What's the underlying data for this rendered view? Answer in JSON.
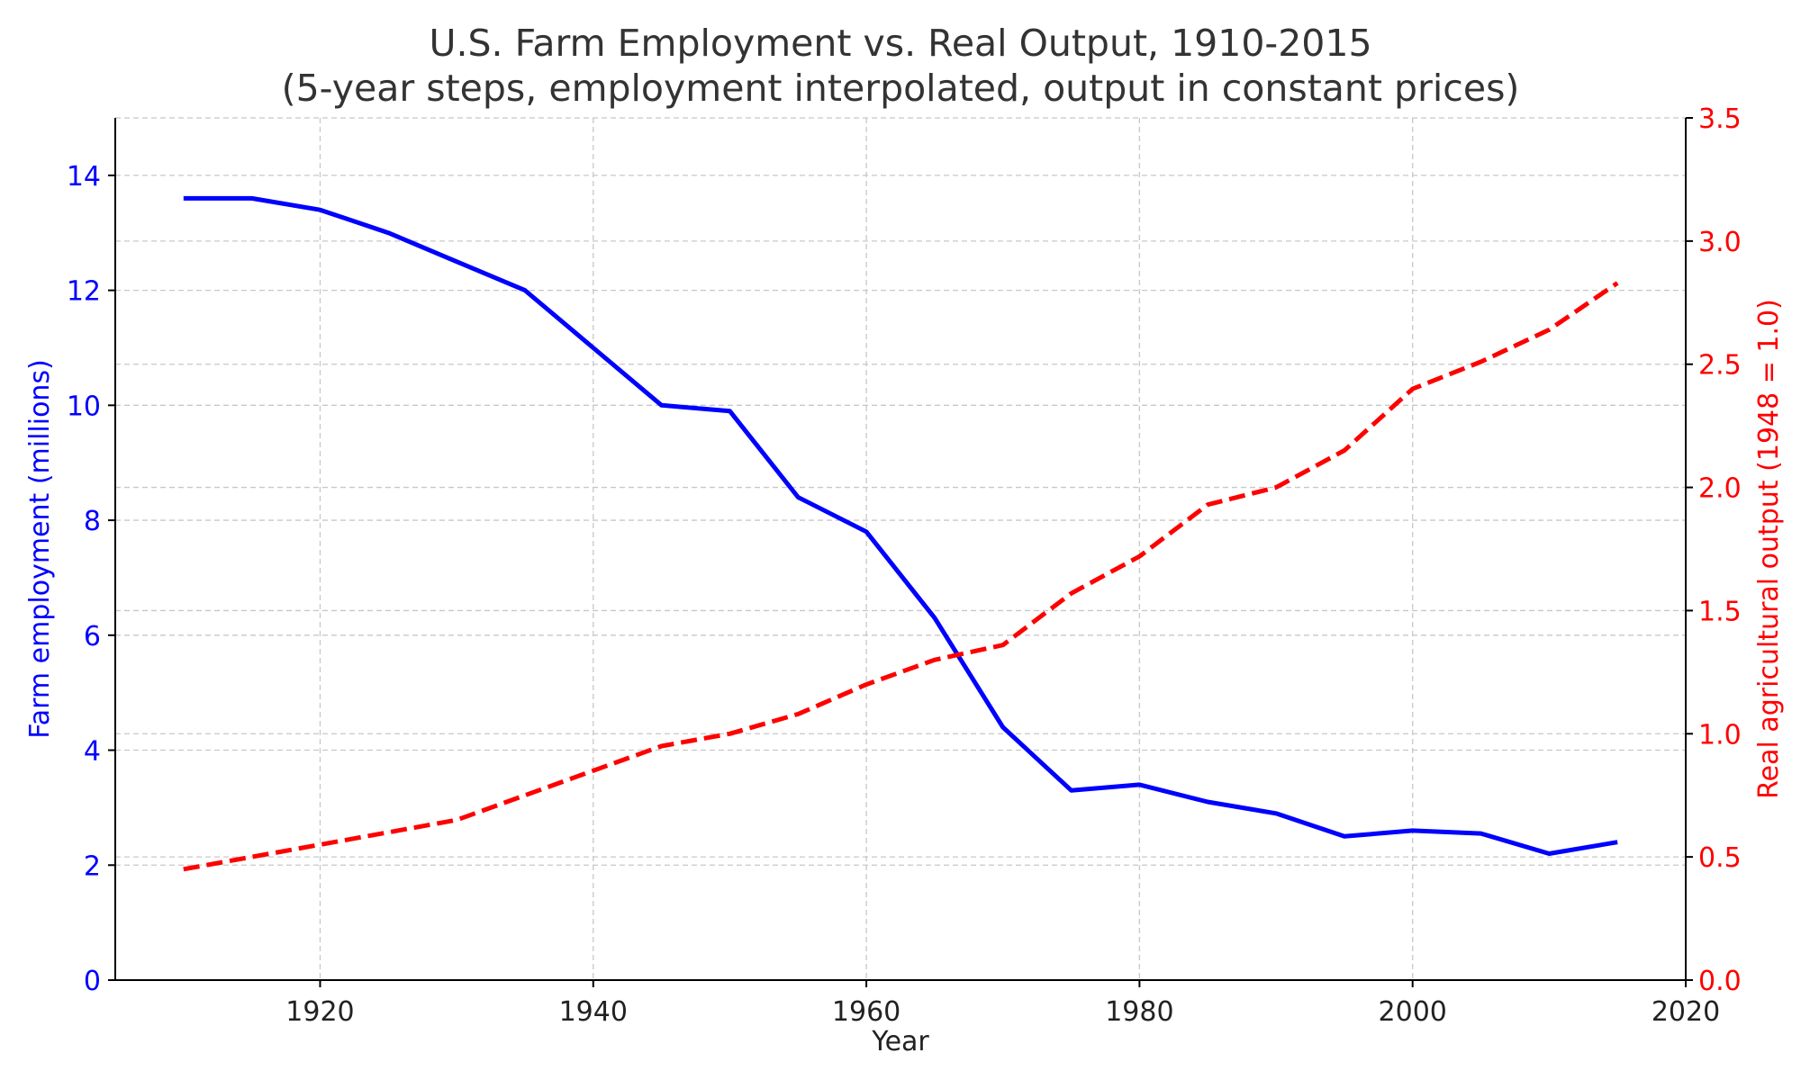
{
  "chart_data": {
    "type": "line",
    "title": "U.S. Farm Employment vs. Real Output, 1910-2015",
    "subtitle": "(5-year steps, employment interpolated, output in constant prices)",
    "xlabel": "Year",
    "ylabel_left": "Farm employment (millions)",
    "ylabel_right": "Real agricultural output (1948 = 1.0)",
    "xlim": [
      1905,
      2020
    ],
    "ylim_left": [
      0,
      15
    ],
    "ylim_right": [
      0,
      3.5
    ],
    "x_ticks": [
      "1920",
      "1940",
      "1960",
      "1980",
      "2000",
      "2020"
    ],
    "y_left_ticks": [
      "0",
      "2",
      "4",
      "6",
      "8",
      "10",
      "12",
      "14"
    ],
    "y_right_ticks": [
      "0.0",
      "0.5",
      "1.0",
      "1.5",
      "2.0",
      "2.5",
      "3.0",
      "3.5"
    ],
    "grid": true,
    "x": [
      1910,
      1915,
      1920,
      1925,
      1930,
      1935,
      1940,
      1945,
      1950,
      1955,
      1960,
      1965,
      1970,
      1975,
      1980,
      1985,
      1990,
      1995,
      2000,
      2005,
      2010,
      2015
    ],
    "series": [
      {
        "axis": "left",
        "color": "#0000ff",
        "style": "solid",
        "values": [
          13.6,
          13.6,
          13.4,
          13.0,
          12.5,
          12.0,
          11.0,
          10.0,
          9.9,
          8.4,
          7.8,
          6.3,
          4.4,
          3.3,
          3.4,
          3.1,
          2.9,
          2.5,
          2.6,
          2.55,
          2.2,
          2.4
        ]
      },
      {
        "axis": "right",
        "color": "#ff0000",
        "style": "dashed",
        "values": [
          0.45,
          0.5,
          0.55,
          0.6,
          0.65,
          0.75,
          0.85,
          0.95,
          1.0,
          1.08,
          1.2,
          1.3,
          1.36,
          1.57,
          1.72,
          1.93,
          2.0,
          2.15,
          2.4,
          2.51,
          2.64,
          2.83
        ]
      }
    ],
    "colors": {
      "left_axis": "#0000ff",
      "right_axis": "#ff0000",
      "grid": "#c8c8c8",
      "title": "#333333"
    }
  }
}
